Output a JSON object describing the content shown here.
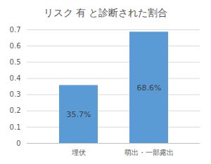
{
  "chart_data": {
    "type": "bar",
    "title": "リスク 有 と診断された割合",
    "categories": [
      "埋伏",
      "萌出・一部露出"
    ],
    "values": [
      0.357,
      0.686
    ],
    "value_labels": [
      "35.7%",
      "68.6%"
    ],
    "color": "#5b9bd5",
    "ylim": [
      0,
      0.7
    ],
    "yticks": [
      0,
      0.1,
      0.2,
      0.3,
      0.4,
      0.5,
      0.6,
      0.7
    ],
    "grid": true,
    "data_labels": true
  }
}
